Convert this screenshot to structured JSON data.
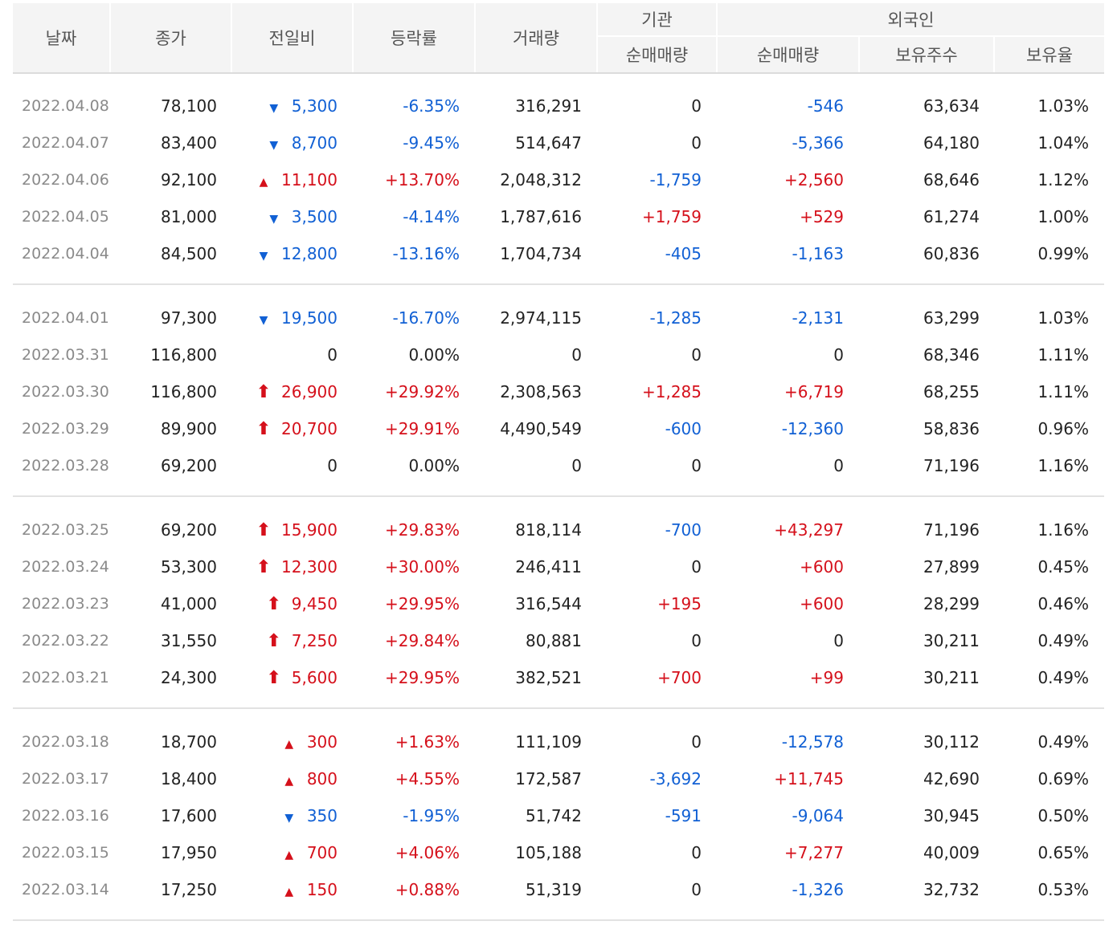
{
  "header": {
    "date": "날짜",
    "close": "종가",
    "change": "전일비",
    "rate": "등락률",
    "volume": "거래량",
    "institution": "기관",
    "institution_net": "순매매량",
    "foreign": "외국인",
    "foreign_net": "순매매량",
    "foreign_holding": "보유주수",
    "foreign_ratio": "보유율"
  },
  "colors": {
    "up": "#d5101b",
    "down": "#1160d4",
    "header_bg": "#f4f4f4"
  },
  "groups": [
    {
      "rows": [
        {
          "date": "2022.04.08",
          "close": "78,100",
          "dir": "down",
          "icon": "down-triangle-icon",
          "change": "5,300",
          "rate": "-6.35%",
          "volume": "316,291",
          "inst": "0",
          "fnet": "-546",
          "fhold": "63,634",
          "fratio": "1.03%"
        },
        {
          "date": "2022.04.07",
          "close": "83,400",
          "dir": "down",
          "icon": "down-triangle-icon",
          "change": "8,700",
          "rate": "-9.45%",
          "volume": "514,647",
          "inst": "0",
          "fnet": "-5,366",
          "fhold": "64,180",
          "fratio": "1.04%"
        },
        {
          "date": "2022.04.06",
          "close": "92,100",
          "dir": "up",
          "icon": "up-triangle-icon",
          "change": "11,100",
          "rate": "+13.70%",
          "volume": "2,048,312",
          "inst": "-1,759",
          "fnet": "+2,560",
          "fhold": "68,646",
          "fratio": "1.12%"
        },
        {
          "date": "2022.04.05",
          "close": "81,000",
          "dir": "down",
          "icon": "down-triangle-icon",
          "change": "3,500",
          "rate": "-4.14%",
          "volume": "1,787,616",
          "inst": "+1,759",
          "fnet": "+529",
          "fhold": "61,274",
          "fratio": "1.00%"
        },
        {
          "date": "2022.04.04",
          "close": "84,500",
          "dir": "down",
          "icon": "down-triangle-icon",
          "change": "12,800",
          "rate": "-13.16%",
          "volume": "1,704,734",
          "inst": "-405",
          "fnet": "-1,163",
          "fhold": "60,836",
          "fratio": "0.99%"
        }
      ]
    },
    {
      "rows": [
        {
          "date": "2022.04.01",
          "close": "97,300",
          "dir": "down",
          "icon": "down-triangle-icon",
          "change": "19,500",
          "rate": "-16.70%",
          "volume": "2,974,115",
          "inst": "-1,285",
          "fnet": "-2,131",
          "fhold": "63,299",
          "fratio": "1.03%"
        },
        {
          "date": "2022.03.31",
          "close": "116,800",
          "dir": "flat",
          "icon": "",
          "change": "0",
          "rate": "0.00%",
          "volume": "0",
          "inst": "0",
          "fnet": "0",
          "fhold": "68,346",
          "fratio": "1.11%"
        },
        {
          "date": "2022.03.30",
          "close": "116,800",
          "dir": "up",
          "icon": "limit-up-arrow-icon",
          "change": "26,900",
          "rate": "+29.92%",
          "volume": "2,308,563",
          "inst": "+1,285",
          "fnet": "+6,719",
          "fhold": "68,255",
          "fratio": "1.11%"
        },
        {
          "date": "2022.03.29",
          "close": "89,900",
          "dir": "up",
          "icon": "limit-up-arrow-icon",
          "change": "20,700",
          "rate": "+29.91%",
          "volume": "4,490,549",
          "inst": "-600",
          "fnet": "-12,360",
          "fhold": "58,836",
          "fratio": "0.96%"
        },
        {
          "date": "2022.03.28",
          "close": "69,200",
          "dir": "flat",
          "icon": "",
          "change": "0",
          "rate": "0.00%",
          "volume": "0",
          "inst": "0",
          "fnet": "0",
          "fhold": "71,196",
          "fratio": "1.16%"
        }
      ]
    },
    {
      "rows": [
        {
          "date": "2022.03.25",
          "close": "69,200",
          "dir": "up",
          "icon": "limit-up-arrow-icon",
          "change": "15,900",
          "rate": "+29.83%",
          "volume": "818,114",
          "inst": "-700",
          "fnet": "+43,297",
          "fhold": "71,196",
          "fratio": "1.16%"
        },
        {
          "date": "2022.03.24",
          "close": "53,300",
          "dir": "up",
          "icon": "limit-up-arrow-icon",
          "change": "12,300",
          "rate": "+30.00%",
          "volume": "246,411",
          "inst": "0",
          "fnet": "+600",
          "fhold": "27,899",
          "fratio": "0.45%"
        },
        {
          "date": "2022.03.23",
          "close": "41,000",
          "dir": "up",
          "icon": "limit-up-arrow-icon",
          "change": "9,450",
          "rate": "+29.95%",
          "volume": "316,544",
          "inst": "+195",
          "fnet": "+600",
          "fhold": "28,299",
          "fratio": "0.46%"
        },
        {
          "date": "2022.03.22",
          "close": "31,550",
          "dir": "up",
          "icon": "limit-up-arrow-icon",
          "change": "7,250",
          "rate": "+29.84%",
          "volume": "80,881",
          "inst": "0",
          "fnet": "0",
          "fhold": "30,211",
          "fratio": "0.49%"
        },
        {
          "date": "2022.03.21",
          "close": "24,300",
          "dir": "up",
          "icon": "limit-up-arrow-icon",
          "change": "5,600",
          "rate": "+29.95%",
          "volume": "382,521",
          "inst": "+700",
          "fnet": "+99",
          "fhold": "30,211",
          "fratio": "0.49%"
        }
      ]
    },
    {
      "rows": [
        {
          "date": "2022.03.18",
          "close": "18,700",
          "dir": "up",
          "icon": "up-triangle-icon",
          "change": "300",
          "rate": "+1.63%",
          "volume": "111,109",
          "inst": "0",
          "fnet": "-12,578",
          "fhold": "30,112",
          "fratio": "0.49%"
        },
        {
          "date": "2022.03.17",
          "close": "18,400",
          "dir": "up",
          "icon": "up-triangle-icon",
          "change": "800",
          "rate": "+4.55%",
          "volume": "172,587",
          "inst": "-3,692",
          "fnet": "+11,745",
          "fhold": "42,690",
          "fratio": "0.69%"
        },
        {
          "date": "2022.03.16",
          "close": "17,600",
          "dir": "down",
          "icon": "down-triangle-icon",
          "change": "350",
          "rate": "-1.95%",
          "volume": "51,742",
          "inst": "-591",
          "fnet": "-9,064",
          "fhold": "30,945",
          "fratio": "0.50%"
        },
        {
          "date": "2022.03.15",
          "close": "17,950",
          "dir": "up",
          "icon": "up-triangle-icon",
          "change": "700",
          "rate": "+4.06%",
          "volume": "105,188",
          "inst": "0",
          "fnet": "+7,277",
          "fhold": "40,009",
          "fratio": "0.65%"
        },
        {
          "date": "2022.03.14",
          "close": "17,250",
          "dir": "up",
          "icon": "up-triangle-icon",
          "change": "150",
          "rate": "+0.88%",
          "volume": "51,319",
          "inst": "0",
          "fnet": "-1,326",
          "fhold": "32,732",
          "fratio": "0.53%"
        }
      ]
    }
  ]
}
